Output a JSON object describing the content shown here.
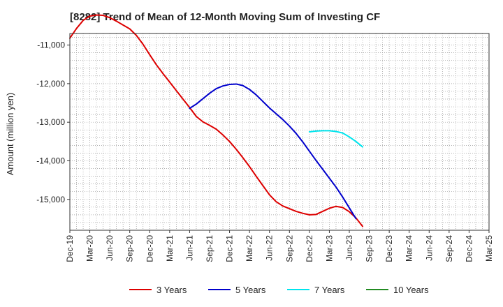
{
  "chart_data": {
    "type": "line",
    "title": "[8282]  Trend of Mean of 12-Month Moving Sum of Investing CF",
    "xlabel": "",
    "ylabel": "Amount (million yen)",
    "ylim": [
      -15800,
      -10700
    ],
    "yticks": [
      -11000,
      -12000,
      -13000,
      -14000,
      -15000
    ],
    "ytick_labels": [
      "-11,000",
      "-12,000",
      "-13,000",
      "-14,000",
      "-15,000"
    ],
    "x_tick_labels": [
      "Dec-19",
      "Mar-20",
      "Jun-20",
      "Sep-20",
      "Dec-20",
      "Mar-21",
      "Jun-21",
      "Sep-21",
      "Dec-21",
      "Mar-22",
      "Jun-22",
      "Sep-22",
      "Dec-22",
      "Mar-23",
      "Jun-23",
      "Sep-23",
      "Dec-23",
      "Mar-24",
      "Jun-24",
      "Sep-24",
      "Dec-24",
      "Mar-25"
    ],
    "grid": true,
    "legend_position": "bottom",
    "series": [
      {
        "name": "3 Years",
        "color": "#dd0000",
        "points": [
          [
            0,
            -10820
          ],
          [
            1,
            -10570
          ],
          [
            2,
            -10360
          ],
          [
            3,
            -10250
          ],
          [
            4,
            -10220
          ],
          [
            5,
            -10230
          ],
          [
            6,
            -10290
          ],
          [
            7,
            -10380
          ],
          [
            8,
            -10480
          ],
          [
            9,
            -10580
          ],
          [
            10,
            -10750
          ],
          [
            11,
            -10980
          ],
          [
            12,
            -11250
          ],
          [
            13,
            -11510
          ],
          [
            14,
            -11740
          ],
          [
            15,
            -11960
          ],
          [
            16,
            -12180
          ],
          [
            17,
            -12400
          ],
          [
            18,
            -12620
          ],
          [
            19,
            -12850
          ],
          [
            20,
            -12990
          ],
          [
            21,
            -13080
          ],
          [
            22,
            -13180
          ],
          [
            23,
            -13330
          ],
          [
            24,
            -13500
          ],
          [
            25,
            -13700
          ],
          [
            26,
            -13920
          ],
          [
            27,
            -14150
          ],
          [
            28,
            -14400
          ],
          [
            29,
            -14640
          ],
          [
            30,
            -14880
          ],
          [
            31,
            -15060
          ],
          [
            32,
            -15170
          ],
          [
            33,
            -15240
          ],
          [
            34,
            -15310
          ],
          [
            35,
            -15360
          ],
          [
            36,
            -15400
          ],
          [
            37,
            -15390
          ],
          [
            38,
            -15310
          ],
          [
            39,
            -15230
          ],
          [
            40,
            -15180
          ],
          [
            41,
            -15210
          ],
          [
            42,
            -15320
          ],
          [
            43,
            -15480
          ],
          [
            44,
            -15700
          ]
        ]
      },
      {
        "name": "5 Years",
        "color": "#0000cc",
        "points": [
          [
            18,
            -12640
          ],
          [
            19,
            -12530
          ],
          [
            20,
            -12390
          ],
          [
            21,
            -12250
          ],
          [
            22,
            -12130
          ],
          [
            23,
            -12060
          ],
          [
            24,
            -12020
          ],
          [
            25,
            -12010
          ],
          [
            26,
            -12050
          ],
          [
            27,
            -12150
          ],
          [
            28,
            -12290
          ],
          [
            29,
            -12460
          ],
          [
            30,
            -12630
          ],
          [
            31,
            -12780
          ],
          [
            32,
            -12930
          ],
          [
            33,
            -13100
          ],
          [
            34,
            -13290
          ],
          [
            35,
            -13510
          ],
          [
            36,
            -13750
          ],
          [
            37,
            -13990
          ],
          [
            38,
            -14220
          ],
          [
            39,
            -14450
          ],
          [
            40,
            -14680
          ],
          [
            41,
            -14940
          ],
          [
            42,
            -15220
          ],
          [
            43,
            -15500
          ]
        ]
      },
      {
        "name": "7 Years",
        "color": "#00e5ee",
        "points": [
          [
            36,
            -13250
          ],
          [
            37,
            -13230
          ],
          [
            38,
            -13220
          ],
          [
            39,
            -13220
          ],
          [
            40,
            -13240
          ],
          [
            41,
            -13280
          ],
          [
            42,
            -13380
          ],
          [
            43,
            -13500
          ],
          [
            44,
            -13640
          ]
        ]
      },
      {
        "name": "10 Years",
        "color": "#228b22",
        "points": []
      }
    ]
  }
}
